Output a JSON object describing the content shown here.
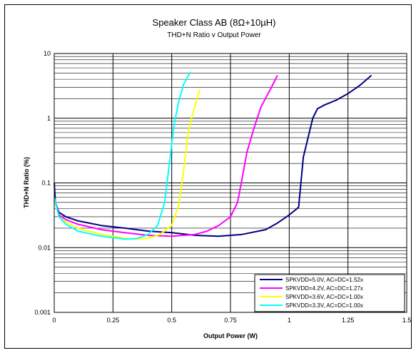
{
  "chart_data": {
    "type": "line",
    "title": "Speaker Class AB (8Ω+10µH)",
    "subtitle": "THD+N Ratio v Output Power",
    "xlabel": "Output Power (W)",
    "ylabel": "THD+N Ratio (%)",
    "xlim": [
      0,
      1.5
    ],
    "ylim": [
      0.001,
      10
    ],
    "yscale": "log",
    "grid": true,
    "legend_position": "bottom-right",
    "x_ticks": [
      "0",
      "0.25",
      "0.5",
      "0.75",
      "1",
      "1.25",
      "1.5"
    ],
    "y_ticks": [
      "0.001",
      "0.01",
      "0.1",
      "1",
      "10"
    ],
    "series": [
      {
        "name": "SPKVDD=5.0V, AC=DC=1.52x",
        "color": "#000080",
        "points": [
          [
            0,
            0.1
          ],
          [
            0.005,
            0.05
          ],
          [
            0.02,
            0.035
          ],
          [
            0.05,
            0.03
          ],
          [
            0.1,
            0.026
          ],
          [
            0.2,
            0.022
          ],
          [
            0.3,
            0.02
          ],
          [
            0.4,
            0.018
          ],
          [
            0.5,
            0.017
          ],
          [
            0.6,
            0.0155
          ],
          [
            0.7,
            0.015
          ],
          [
            0.8,
            0.016
          ],
          [
            0.9,
            0.019
          ],
          [
            0.95,
            0.024
          ],
          [
            1.0,
            0.032
          ],
          [
            1.04,
            0.042
          ],
          [
            1.06,
            0.25
          ],
          [
            1.08,
            0.5
          ],
          [
            1.1,
            1.0
          ],
          [
            1.12,
            1.4
          ],
          [
            1.15,
            1.6
          ],
          [
            1.2,
            1.9
          ],
          [
            1.25,
            2.4
          ],
          [
            1.3,
            3.2
          ],
          [
            1.35,
            4.6
          ]
        ]
      },
      {
        "name": "SPKVDD=4.2V, AC=DC=1.27x",
        "color": "#FF00FF",
        "points": [
          [
            0,
            0.06
          ],
          [
            0.02,
            0.032
          ],
          [
            0.05,
            0.027
          ],
          [
            0.1,
            0.023
          ],
          [
            0.2,
            0.019
          ],
          [
            0.3,
            0.017
          ],
          [
            0.4,
            0.0155
          ],
          [
            0.5,
            0.015
          ],
          [
            0.6,
            0.016
          ],
          [
            0.65,
            0.018
          ],
          [
            0.7,
            0.022
          ],
          [
            0.75,
            0.03
          ],
          [
            0.78,
            0.05
          ],
          [
            0.8,
            0.12
          ],
          [
            0.82,
            0.3
          ],
          [
            0.85,
            0.7
          ],
          [
            0.88,
            1.5
          ],
          [
            0.92,
            2.8
          ],
          [
            0.95,
            4.6
          ]
        ]
      },
      {
        "name": "SPKVDD=3.6V, AC=DC=1.00x",
        "color": "#FFFF00",
        "points": [
          [
            0,
            0.055
          ],
          [
            0.02,
            0.03
          ],
          [
            0.05,
            0.025
          ],
          [
            0.1,
            0.02
          ],
          [
            0.2,
            0.016
          ],
          [
            0.3,
            0.014
          ],
          [
            0.35,
            0.0135
          ],
          [
            0.4,
            0.014
          ],
          [
            0.45,
            0.016
          ],
          [
            0.5,
            0.022
          ],
          [
            0.53,
            0.045
          ],
          [
            0.55,
            0.15
          ],
          [
            0.57,
            0.6
          ],
          [
            0.59,
            1.2
          ],
          [
            0.62,
            2.8
          ]
        ]
      },
      {
        "name": "SPKVDD=3.3V, AC=DC=1.00x",
        "color": "#00FFFF",
        "points": [
          [
            0,
            0.06
          ],
          [
            0.02,
            0.03
          ],
          [
            0.05,
            0.023
          ],
          [
            0.1,
            0.018
          ],
          [
            0.2,
            0.015
          ],
          [
            0.3,
            0.0135
          ],
          [
            0.35,
            0.0138
          ],
          [
            0.4,
            0.016
          ],
          [
            0.44,
            0.022
          ],
          [
            0.47,
            0.05
          ],
          [
            0.49,
            0.2
          ],
          [
            0.51,
            0.8
          ],
          [
            0.53,
            1.8
          ],
          [
            0.55,
            3.3
          ],
          [
            0.58,
            5.2
          ]
        ]
      }
    ]
  }
}
